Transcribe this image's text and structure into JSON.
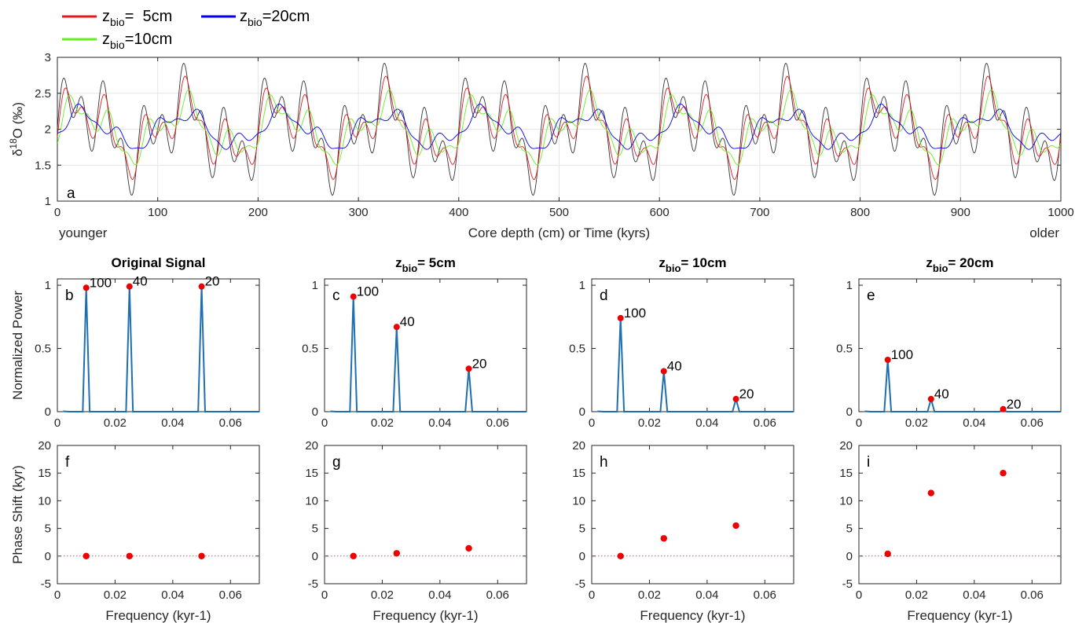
{
  "legend": {
    "items": [
      {
        "color": "#e41a1c",
        "main": "z",
        "sub": "bio",
        "rest": "=  5cm"
      },
      {
        "color": "#0000ee",
        "main": "z",
        "sub": "bio",
        "rest": "=20cm"
      },
      {
        "color": "#66ee22",
        "main": "z",
        "sub": "bio",
        "rest": "=10cm"
      }
    ]
  },
  "chart_data": [
    {
      "panel": "a",
      "type": "line",
      "title": "",
      "xlabel": "Core depth (cm) or Time (kyrs)",
      "ylabel": "δ18O (‰)",
      "ylabel_parts": {
        "pre": "δ",
        "sup": "18",
        "post": "O (‰)"
      },
      "xlim": [
        0,
        1000
      ],
      "ylim": [
        1,
        3
      ],
      "xticks": [
        0,
        100,
        200,
        300,
        400,
        500,
        600,
        700,
        800,
        900,
        1000
      ],
      "yticks": [
        1,
        1.5,
        2,
        2.5,
        3
      ],
      "corner_left": "younger",
      "corner_right": "older",
      "grid": true,
      "signal_model": {
        "mean": 2,
        "components": [
          {
            "period": 100,
            "amplitude": 0.333
          },
          {
            "period": 40,
            "amplitude": 0.333
          },
          {
            "period": 20,
            "amplitude": 0.333
          }
        ]
      },
      "series": [
        {
          "name": "original",
          "color": "#333333",
          "gains": [
            1.0,
            1.0,
            1.0
          ],
          "lags": [
            0,
            0,
            0
          ]
        },
        {
          "name": "zbio=5cm",
          "color": "#e41a1c",
          "gains": [
            0.95,
            0.82,
            0.58
          ],
          "lags": [
            0,
            0.5,
            1.4
          ]
        },
        {
          "name": "zbio=10cm",
          "color": "#66ee22",
          "gains": [
            0.86,
            0.57,
            0.32
          ],
          "lags": [
            0,
            3.2,
            5.5
          ]
        },
        {
          "name": "zbio=20cm",
          "color": "#0000ee",
          "gains": [
            0.64,
            0.31,
            0.14
          ],
          "lags": [
            0.4,
            11.4,
            15.0
          ]
        }
      ]
    },
    {
      "panel": "b",
      "type": "line",
      "title": "Original Signal",
      "title_z": false,
      "ylabel": "Normalized Power",
      "xlim": [
        0,
        0.07
      ],
      "ylim": [
        0,
        1.05
      ],
      "xticks": [
        0,
        0.02,
        0.04,
        0.06
      ],
      "yticks": [
        0,
        0.5,
        1
      ],
      "peaks": [
        {
          "x": 0.01,
          "y": 0.98,
          "label": "100"
        },
        {
          "x": 0.025,
          "y": 0.99,
          "label": "40"
        },
        {
          "x": 0.05,
          "y": 0.99,
          "label": "20"
        }
      ]
    },
    {
      "panel": "c",
      "type": "line",
      "title": "= 5cm",
      "title_z": true,
      "ylabel": "",
      "xlim": [
        0,
        0.07
      ],
      "ylim": [
        0,
        1.05
      ],
      "xticks": [
        0,
        0.02,
        0.04,
        0.06
      ],
      "yticks": [
        0,
        0.5,
        1
      ],
      "peaks": [
        {
          "x": 0.01,
          "y": 0.91,
          "label": "100"
        },
        {
          "x": 0.025,
          "y": 0.67,
          "label": "40"
        },
        {
          "x": 0.05,
          "y": 0.34,
          "label": "20"
        }
      ]
    },
    {
      "panel": "d",
      "type": "line",
      "title": "= 10cm",
      "title_z": true,
      "ylabel": "",
      "xlim": [
        0,
        0.07
      ],
      "ylim": [
        0,
        1.05
      ],
      "xticks": [
        0,
        0.02,
        0.04,
        0.06
      ],
      "yticks": [
        0,
        0.5,
        1
      ],
      "peaks": [
        {
          "x": 0.01,
          "y": 0.74,
          "label": "100"
        },
        {
          "x": 0.025,
          "y": 0.32,
          "label": "40"
        },
        {
          "x": 0.05,
          "y": 0.1,
          "label": "20"
        }
      ]
    },
    {
      "panel": "e",
      "type": "line",
      "title": "= 20cm",
      "title_z": true,
      "ylabel": "",
      "xlim": [
        0,
        0.07
      ],
      "ylim": [
        0,
        1.05
      ],
      "xticks": [
        0,
        0.02,
        0.04,
        0.06
      ],
      "yticks": [
        0,
        0.5,
        1
      ],
      "peaks": [
        {
          "x": 0.01,
          "y": 0.41,
          "label": "100"
        },
        {
          "x": 0.025,
          "y": 0.1,
          "label": "40"
        },
        {
          "x": 0.05,
          "y": 0.02,
          "label": "20"
        }
      ]
    },
    {
      "panel": "f",
      "type": "scatter",
      "xlabel": "Frequency (kyr-1)",
      "ylabel": "Phase Shift (kyr)",
      "xlim": [
        0,
        0.07
      ],
      "ylim": [
        -5,
        20
      ],
      "xticks": [
        0,
        0.02,
        0.04,
        0.06
      ],
      "yticks": [
        -5,
        0,
        5,
        10,
        15,
        20
      ],
      "points": [
        {
          "x": 0.01,
          "y": 0
        },
        {
          "x": 0.025,
          "y": 0
        },
        {
          "x": 0.05,
          "y": 0
        }
      ]
    },
    {
      "panel": "g",
      "type": "scatter",
      "xlabel": "Frequency (kyr-1)",
      "ylabel": "",
      "xlim": [
        0,
        0.07
      ],
      "ylim": [
        -5,
        20
      ],
      "xticks": [
        0,
        0.02,
        0.04,
        0.06
      ],
      "yticks": [
        -5,
        0,
        5,
        10,
        15,
        20
      ],
      "points": [
        {
          "x": 0.01,
          "y": 0
        },
        {
          "x": 0.025,
          "y": 0.5
        },
        {
          "x": 0.05,
          "y": 1.4
        }
      ]
    },
    {
      "panel": "h",
      "type": "scatter",
      "xlabel": "Frequency (kyr-1)",
      "ylabel": "",
      "xlim": [
        0,
        0.07
      ],
      "ylim": [
        -5,
        20
      ],
      "xticks": [
        0,
        0.02,
        0.04,
        0.06
      ],
      "yticks": [
        -5,
        0,
        5,
        10,
        15,
        20
      ],
      "points": [
        {
          "x": 0.01,
          "y": 0
        },
        {
          "x": 0.025,
          "y": 3.2
        },
        {
          "x": 0.05,
          "y": 5.5
        }
      ]
    },
    {
      "panel": "i",
      "type": "scatter",
      "xlabel": "Frequency (kyr-1)",
      "ylabel": "",
      "xlim": [
        0,
        0.07
      ],
      "ylim": [
        -5,
        20
      ],
      "xticks": [
        0,
        0.02,
        0.04,
        0.06
      ],
      "yticks": [
        -5,
        0,
        5,
        10,
        15,
        20
      ],
      "points": [
        {
          "x": 0.01,
          "y": 0.4
        },
        {
          "x": 0.025,
          "y": 11.4
        },
        {
          "x": 0.05,
          "y": 15.0
        }
      ]
    }
  ],
  "colors": {
    "spectrum": "#1f6fb0",
    "point": "#ee0000",
    "axis": "#262626",
    "grid": "#e6e6e6",
    "zero_line": "#c86464"
  }
}
